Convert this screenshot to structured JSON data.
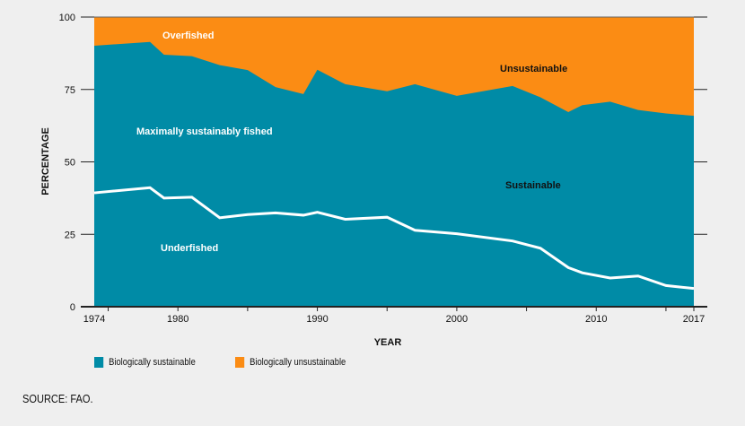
{
  "chart_data": {
    "type": "area",
    "xlabel": "YEAR",
    "ylabel": "PERCENTAGE",
    "ylim": [
      0,
      100
    ],
    "xlim": [
      1974,
      2017
    ],
    "y_ticks": [
      0,
      25,
      50,
      75,
      100
    ],
    "x_tick_labels": [
      1974,
      1980,
      1990,
      2000,
      2010,
      2017
    ],
    "x": [
      1974,
      1978,
      1979,
      1981,
      1983,
      1985,
      1987,
      1989,
      1990,
      1992,
      1995,
      1997,
      2000,
      2004,
      2006,
      2008,
      2009,
      2011,
      2013,
      2015,
      2017
    ],
    "series": [
      {
        "name": "Biologically sustainable",
        "color": "#008ba6",
        "values": [
          90.1,
          91.4,
          87.0,
          86.5,
          83.4,
          81.7,
          75.8,
          73.4,
          81.8,
          76.8,
          74.4,
          76.8,
          72.8,
          76.2,
          72.3,
          67.2,
          69.6,
          70.8,
          67.9,
          66.7,
          65.9
        ]
      },
      {
        "name": "Biologically unsustainable",
        "color": "#fb8c14",
        "values": [
          9.9,
          8.6,
          13.0,
          13.5,
          16.6,
          18.3,
          24.2,
          26.6,
          18.2,
          23.2,
          25.6,
          23.2,
          27.2,
          23.8,
          27.7,
          32.8,
          30.4,
          29.2,
          32.1,
          33.3,
          34.1
        ]
      }
    ],
    "underfished_line": [
      39.3,
      41.1,
      37.5,
      37.8,
      30.7,
      31.8,
      32.4,
      31.6,
      32.6,
      30.2,
      30.9,
      26.4,
      25.2,
      22.7,
      20.2,
      13.5,
      11.7,
      9.9,
      10.6,
      7.3,
      6.3
    ],
    "annotations": {
      "overfished": "Overfished",
      "unsustainable": "Unsustainable",
      "maximally": "Maximally sustainably fished",
      "sustainable": "Sustainable",
      "underfished": "Underfished"
    },
    "legend": [
      "Biologically sustainable",
      "Biologically unsustainable"
    ],
    "legend_position": "bottom",
    "grid": false
  },
  "source": "SOURCE: FAO."
}
